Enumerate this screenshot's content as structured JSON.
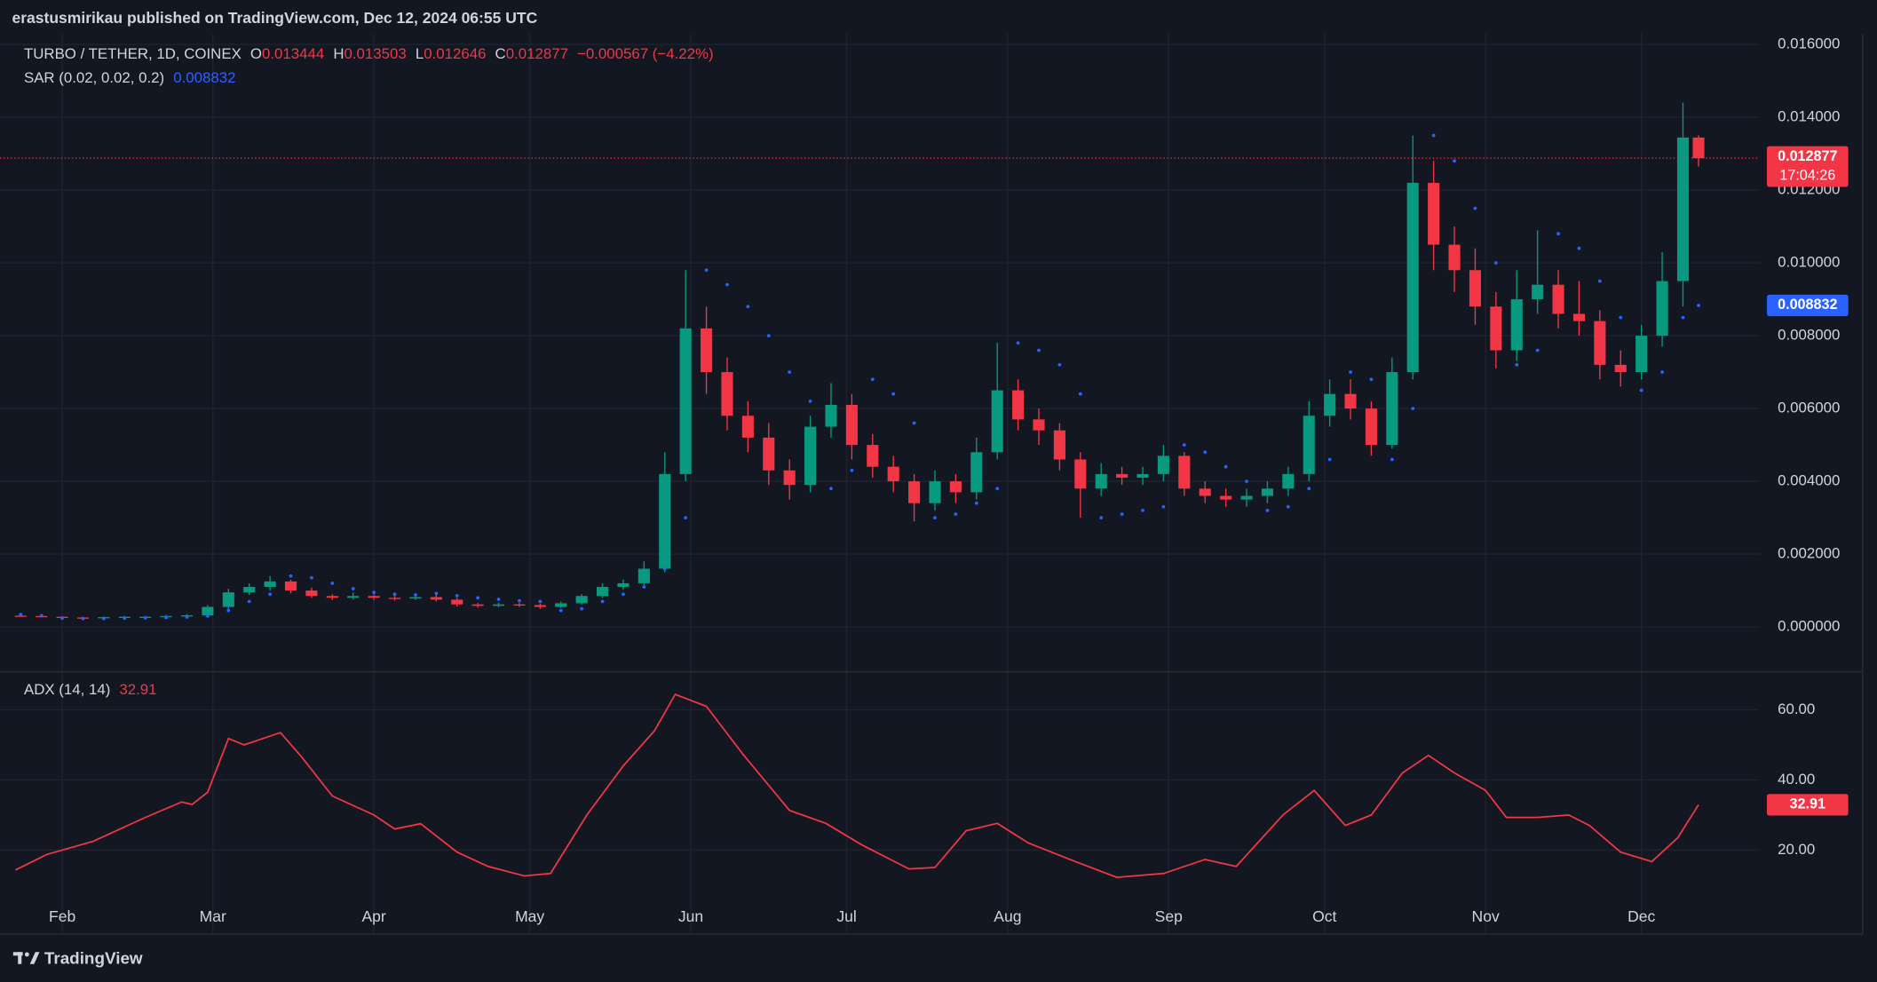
{
  "header": "erastusmirikau published on TradingView.com, Dec 12, 2024 06:55 UTC",
  "footer": {
    "brand": "TradingView"
  },
  "chart_data": [
    {
      "type": "candlestick",
      "title": "TURBO / TETHER, 1D, COINEX",
      "ohlc_labels": [
        "O",
        "H",
        "L",
        "C"
      ],
      "change_label": "−0.000567 (−4.22%)",
      "countdown": "17:04:26",
      "up_color": "#089981",
      "down_color": "#f23645",
      "x": [
        -8,
        -4,
        0,
        4,
        8,
        12,
        16,
        20,
        24,
        28,
        32,
        36,
        40,
        44,
        48,
        52,
        56,
        60,
        64,
        68,
        72,
        76,
        80,
        84,
        88,
        92,
        96,
        100,
        104,
        108,
        112,
        116,
        120,
        124,
        128,
        132,
        136,
        140,
        144,
        148,
        152,
        156,
        160,
        164,
        168,
        172,
        176,
        180,
        184,
        188,
        192,
        196,
        200,
        204,
        208,
        212,
        216,
        220,
        224,
        228,
        232,
        236,
        240,
        244,
        248,
        252,
        256,
        260,
        264,
        268,
        272,
        276,
        280,
        284,
        288,
        292,
        296,
        300,
        304,
        308,
        312,
        315
      ],
      "open": [
        0.00031,
        0.0003,
        0.00028,
        0.00026,
        0.00025,
        0.00027,
        0.00028,
        0.00028,
        0.0003,
        0.00032,
        0.00055,
        0.00095,
        0.0011,
        0.00125,
        0.001,
        0.00085,
        0.0008,
        0.00085,
        0.0008,
        0.00078,
        0.00082,
        0.00075,
        0.00062,
        0.00058,
        0.00062,
        0.0006,
        0.00055,
        0.00065,
        0.00085,
        0.0011,
        0.0012,
        0.0016,
        0.0042,
        0.0082,
        0.007,
        0.0058,
        0.0052,
        0.0043,
        0.0039,
        0.0055,
        0.0061,
        0.005,
        0.0044,
        0.004,
        0.0034,
        0.004,
        0.0037,
        0.0048,
        0.0065,
        0.0057,
        0.0054,
        0.0046,
        0.0038,
        0.0042,
        0.0041,
        0.0042,
        0.0047,
        0.0038,
        0.0036,
        0.0035,
        0.0036,
        0.0038,
        0.0042,
        0.0058,
        0.0064,
        0.006,
        0.005,
        0.007,
        0.0122,
        0.0105,
        0.0098,
        0.0088,
        0.0076,
        0.009,
        0.0094,
        0.0086,
        0.0084,
        0.0072,
        0.007,
        0.008,
        0.0095,
        0.013444
      ],
      "high": [
        0.00034,
        0.00032,
        0.0003,
        0.00028,
        0.00029,
        0.0003,
        0.0003,
        0.00033,
        0.00035,
        0.0006,
        0.00105,
        0.0012,
        0.0014,
        0.0013,
        0.00108,
        0.0009,
        0.00095,
        0.0009,
        0.00086,
        0.0009,
        0.00088,
        0.0008,
        0.00066,
        0.00067,
        0.00066,
        0.00064,
        0.0007,
        0.0009,
        0.0012,
        0.0013,
        0.0018,
        0.0048,
        0.0098,
        0.0088,
        0.0074,
        0.0062,
        0.0056,
        0.0046,
        0.0058,
        0.0067,
        0.0064,
        0.0053,
        0.0047,
        0.0042,
        0.0043,
        0.0042,
        0.0052,
        0.0078,
        0.0068,
        0.006,
        0.0056,
        0.0048,
        0.0045,
        0.0044,
        0.0044,
        0.005,
        0.0048,
        0.004,
        0.0038,
        0.0038,
        0.004,
        0.0044,
        0.0062,
        0.0068,
        0.0068,
        0.0062,
        0.0074,
        0.0135,
        0.0128,
        0.011,
        0.0104,
        0.0092,
        0.0098,
        0.0109,
        0.0098,
        0.0095,
        0.0087,
        0.0076,
        0.0083,
        0.0103,
        0.0144,
        0.013503
      ],
      "low": [
        0.00028,
        0.00026,
        0.00024,
        0.00023,
        0.00024,
        0.00025,
        0.00026,
        0.00026,
        0.00028,
        0.0003,
        0.0005,
        0.00088,
        0.001,
        0.00092,
        0.0008,
        0.00074,
        0.00075,
        0.00074,
        0.00072,
        0.00074,
        0.0007,
        0.00056,
        0.00053,
        0.00054,
        0.00055,
        0.0005,
        0.00052,
        0.00062,
        0.0008,
        0.00102,
        0.00112,
        0.0015,
        0.004,
        0.0064,
        0.0054,
        0.0048,
        0.0039,
        0.0035,
        0.0037,
        0.0052,
        0.0046,
        0.0041,
        0.0037,
        0.0029,
        0.0032,
        0.0034,
        0.0035,
        0.0046,
        0.0054,
        0.005,
        0.0043,
        0.003,
        0.0036,
        0.0039,
        0.0039,
        0.004,
        0.0036,
        0.0034,
        0.0033,
        0.0033,
        0.0034,
        0.0036,
        0.004,
        0.0055,
        0.0057,
        0.0047,
        0.0049,
        0.0068,
        0.0098,
        0.0092,
        0.0083,
        0.0071,
        0.0073,
        0.0086,
        0.0082,
        0.008,
        0.0068,
        0.0066,
        0.0068,
        0.0077,
        0.0088,
        0.012646
      ],
      "close": [
        0.0003,
        0.00028,
        0.00026,
        0.00025,
        0.00027,
        0.00028,
        0.00028,
        0.0003,
        0.00032,
        0.00055,
        0.00095,
        0.0011,
        0.00125,
        0.001,
        0.00085,
        0.0008,
        0.00085,
        0.0008,
        0.00078,
        0.00082,
        0.00075,
        0.00062,
        0.00058,
        0.00062,
        0.0006,
        0.00055,
        0.00065,
        0.00085,
        0.0011,
        0.0012,
        0.0016,
        0.0042,
        0.0082,
        0.007,
        0.0058,
        0.0052,
        0.0043,
        0.0039,
        0.0055,
        0.0061,
        0.005,
        0.0044,
        0.004,
        0.0034,
        0.004,
        0.0037,
        0.0048,
        0.0065,
        0.0057,
        0.0054,
        0.0046,
        0.0038,
        0.0042,
        0.0041,
        0.0042,
        0.0047,
        0.0038,
        0.0036,
        0.0035,
        0.0036,
        0.0038,
        0.0042,
        0.0058,
        0.0064,
        0.006,
        0.005,
        0.007,
        0.0122,
        0.0105,
        0.0098,
        0.0088,
        0.0076,
        0.009,
        0.0094,
        0.0086,
        0.0084,
        0.0072,
        0.007,
        0.008,
        0.0095,
        0.013444,
        0.012877
      ],
      "sar": {
        "name": "SAR (0.02, 0.02, 0.2)",
        "color": "#2962ff",
        "values": [
          0.00034,
          0.00031,
          0.00024,
          0.00023,
          0.00023,
          0.00024,
          0.00025,
          0.00026,
          0.00027,
          0.0003,
          0.00045,
          0.0007,
          0.0009,
          0.0014,
          0.00135,
          0.0012,
          0.00105,
          0.00095,
          0.0009,
          0.00088,
          0.00092,
          0.00086,
          0.0008,
          0.00076,
          0.00072,
          0.0007,
          0.00045,
          0.0005,
          0.0007,
          0.0009,
          0.0011,
          0.0016,
          0.003,
          0.0098,
          0.0094,
          0.0088,
          0.008,
          0.007,
          0.0062,
          0.0038,
          0.0043,
          0.0068,
          0.0064,
          0.0056,
          0.003,
          0.0031,
          0.0034,
          0.0038,
          0.0078,
          0.0076,
          0.0072,
          0.0064,
          0.003,
          0.0031,
          0.0032,
          0.0033,
          0.005,
          0.0048,
          0.0044,
          0.004,
          0.0032,
          0.0033,
          0.0038,
          0.0046,
          0.007,
          0.0068,
          0.0046,
          0.006,
          0.0135,
          0.0128,
          0.0115,
          0.01,
          0.0072,
          0.0076,
          0.0108,
          0.0104,
          0.0095,
          0.0085,
          0.0065,
          0.007,
          0.0085,
          0.008832
        ]
      },
      "xlim": [
        -10,
        327
      ],
      "ylim": [
        -0.0012,
        0.0163
      ],
      "yticks": [
        {
          "value": 0,
          "label": "0.000000"
        },
        {
          "value": 0.002,
          "label": "0.002000"
        },
        {
          "value": 0.004,
          "label": "0.004000"
        },
        {
          "value": 0.006,
          "label": "0.006000"
        },
        {
          "value": 0.008,
          "label": "0.008000"
        },
        {
          "value": 0.01,
          "label": "0.010000"
        },
        {
          "value": 0.012,
          "label": "0.012000"
        },
        {
          "value": 0.014,
          "label": "0.014000"
        },
        {
          "value": 0.016,
          "label": "0.016000"
        }
      ],
      "grid": true
    },
    {
      "type": "line",
      "x": [
        -9,
        -3,
        6,
        16,
        23,
        25,
        28,
        32,
        35,
        42,
        46,
        52,
        60,
        64,
        69,
        76,
        82,
        89,
        94,
        101,
        108,
        114,
        118,
        124,
        131,
        140,
        147,
        154,
        163,
        168,
        174,
        180,
        186,
        195,
        203,
        212,
        220,
        226,
        235,
        241,
        247,
        252,
        258,
        263,
        268,
        274,
        278,
        284,
        290,
        294,
        300,
        306,
        311,
        315
      ],
      "series": [
        {
          "name": "ADX (14, 14)",
          "color": "#f23645",
          "values": [
            14.3,
            18.7,
            22.5,
            29.3,
            33.7,
            33,
            36.5,
            51.8,
            50,
            53.5,
            46.7,
            35.4,
            30,
            26,
            27.5,
            19.4,
            15.3,
            12.6,
            13.3,
            30,
            44,
            54,
            64.4,
            61,
            47.4,
            31.3,
            27.6,
            21.4,
            14.6,
            15,
            25.5,
            27.6,
            22,
            16.7,
            12.2,
            13.3,
            17.3,
            15.3,
            30,
            37,
            27,
            30,
            42,
            47,
            42,
            37,
            29.3,
            29.3,
            30,
            27,
            19.4,
            16.7,
            23.5,
            32.91
          ]
        }
      ],
      "xlim": [
        -10,
        327
      ],
      "xticks": [
        {
          "value": 0,
          "label": "Feb"
        },
        {
          "value": 29,
          "label": "Mar"
        },
        {
          "value": 60,
          "label": "Apr"
        },
        {
          "value": 90,
          "label": "May"
        },
        {
          "value": 121,
          "label": "Jun"
        },
        {
          "value": 151,
          "label": "Jul"
        },
        {
          "value": 182,
          "label": "Aug"
        },
        {
          "value": 213,
          "label": "Sep"
        },
        {
          "value": 243,
          "label": "Oct"
        },
        {
          "value": 274,
          "label": "Nov"
        },
        {
          "value": 304,
          "label": "Dec"
        }
      ],
      "ylim": [
        -4,
        70.5
      ],
      "yticks": [
        {
          "value": 20,
          "label": "20.00"
        },
        {
          "value": 40,
          "label": "40.00"
        },
        {
          "value": 60,
          "label": "60.00"
        }
      ],
      "grid": true
    }
  ]
}
